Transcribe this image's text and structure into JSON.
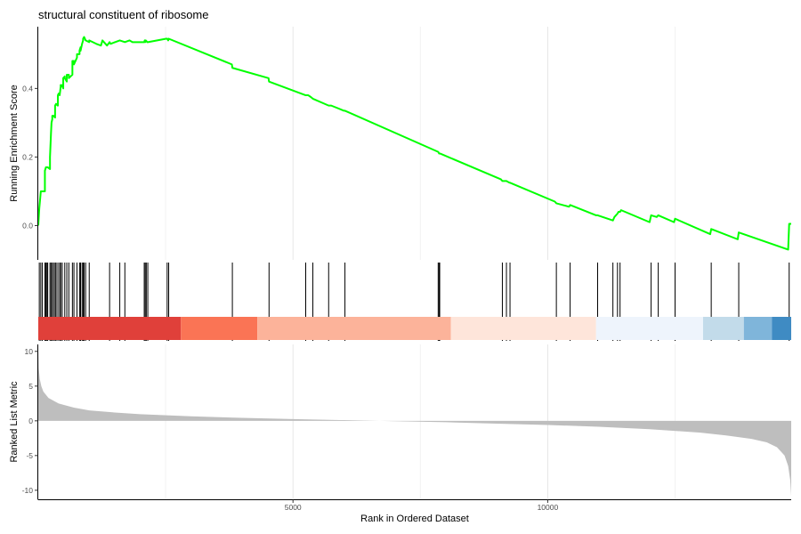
{
  "chart_data": {
    "type": "line",
    "title": "structural constituent of ribosome",
    "xlabel": "Rank in Ordered Dataset",
    "xlim": [
      0,
      14780
    ],
    "x_ticks": [
      5000,
      10000
    ],
    "grid": true,
    "legend": "none",
    "panels": {
      "enrichment": {
        "ylabel": "Running Enrichment Score",
        "ylim": [
          -0.1,
          0.58
        ],
        "y_ticks": [
          0.0,
          0.2,
          0.4
        ],
        "line_color": "#00ff00",
        "series": [
          {
            "x": [
              0,
              20,
              50,
              50,
              130,
              130,
              150,
              150,
              155,
              170,
              170,
              185,
              185,
              230,
              230,
              250,
              250,
              260,
              275,
              275,
              300,
              300,
              330,
              330,
              350,
              350,
              380,
              385,
              385,
              400,
              420,
              420,
              440,
              440,
              470,
              470,
              480,
              490,
              490,
              520,
              520,
              560,
              560,
              600,
              600,
              670,
              670,
              700,
              700,
              760,
              760,
              810,
              810,
              830,
              830,
              860,
              860,
              880,
              880,
              900,
              900,
              930,
              930,
              1000,
              1000,
              1140,
              1230,
              1260,
              1350,
              1400,
              1420,
              1600,
              1700,
              1790,
              1850,
              2080,
              2090,
              2100,
              2110,
              2140,
              2150,
              2510,
              2530,
              2550,
              2560,
              3800,
              3810,
              4520,
              4530,
              5250,
              5300,
              5350,
              5390,
              5700,
              5750,
              6000,
              6020,
              7850,
              7870,
              7880,
              7890,
              9080,
              9110,
              9150,
              9190,
              9250,
              9260,
              10140,
              10170,
              10420,
              10440,
              10950,
              10980,
              11280,
              11310,
              11370,
              11390,
              11420,
              11440,
              12000,
              12030,
              12140,
              12170,
              12480,
              12500,
              13190,
              13210,
              13730,
              13750,
              14720,
              14740,
              14780
            ],
            "values": [
              0.0,
              0.05,
              0.1,
              0.1,
              0.1,
              0.16,
              0.17,
              0.17,
              0.17,
              0.17,
              0.17,
              0.17,
              0.17,
              0.165,
              0.2,
              0.27,
              0.27,
              0.3,
              0.31,
              0.32,
              0.32,
              0.32,
              0.315,
              0.35,
              0.355,
              0.355,
              0.35,
              0.35,
              0.38,
              0.385,
              0.385,
              0.38,
              0.405,
              0.41,
              0.405,
              0.41,
              0.41,
              0.4,
              0.43,
              0.435,
              0.43,
              0.42,
              0.44,
              0.44,
              0.43,
              0.44,
              0.48,
              0.48,
              0.47,
              0.49,
              0.5,
              0.5,
              0.51,
              0.52,
              0.51,
              0.53,
              0.53,
              0.54,
              0.545,
              0.55,
              0.55,
              0.54,
              0.54,
              0.535,
              0.54,
              0.53,
              0.525,
              0.54,
              0.525,
              0.535,
              0.53,
              0.54,
              0.535,
              0.54,
              0.535,
              0.535,
              0.54,
              0.535,
              0.54,
              0.535,
              0.535,
              0.545,
              0.545,
              0.54,
              0.545,
              0.47,
              0.46,
              0.43,
              0.42,
              0.38,
              0.38,
              0.375,
              0.37,
              0.35,
              0.35,
              0.335,
              0.335,
              0.215,
              0.21,
              0.21,
              0.21,
              0.135,
              0.13,
              0.13,
              0.13,
              0.125,
              0.125,
              0.07,
              0.065,
              0.055,
              0.06,
              0.03,
              0.03,
              0.015,
              0.025,
              0.035,
              0.04,
              0.04,
              0.045,
              0.01,
              0.03,
              0.025,
              0.03,
              0.01,
              0.02,
              -0.025,
              -0.01,
              -0.04,
              -0.02,
              -0.07,
              0.005,
              0.005
            ]
          }
        ]
      },
      "gene_hits": {
        "positions": [
          20,
          50,
          80,
          130,
          150,
          170,
          185,
          230,
          250,
          275,
          300,
          330,
          350,
          385,
          420,
          440,
          470,
          520,
          560,
          600,
          670,
          700,
          760,
          810,
          830,
          860,
          880,
          900,
          930,
          1000,
          1400,
          1600,
          1700,
          2080,
          2100,
          2120,
          2150,
          2530,
          2560,
          3810,
          4530,
          5250,
          5390,
          5700,
          6020,
          7850,
          7870,
          7880,
          9110,
          9190,
          9260,
          10170,
          10440,
          10980,
          11280,
          11370,
          11420,
          12030,
          12170,
          12500,
          13210,
          13750,
          14740
        ]
      },
      "color_band": {
        "segments": [
          {
            "from": 0,
            "to": 2800,
            "color": "#e0403a"
          },
          {
            "from": 2800,
            "to": 4300,
            "color": "#fa7455"
          },
          {
            "from": 4300,
            "to": 8100,
            "color": "#fcb39a"
          },
          {
            "from": 8100,
            "to": 10950,
            "color": "#fee5da"
          },
          {
            "from": 10950,
            "to": 13050,
            "color": "#eef4fc"
          },
          {
            "from": 13050,
            "to": 13850,
            "color": "#c2dbea"
          },
          {
            "from": 13850,
            "to": 14400,
            "color": "#7fb5da"
          },
          {
            "from": 14400,
            "to": 14780,
            "color": "#3f8bc3"
          }
        ]
      },
      "ranked_metric": {
        "ylabel": "Ranked List Metric",
        "ylim": [
          -11.3,
          11.0
        ],
        "y_ticks": [
          10,
          5,
          0,
          -5,
          -10
        ],
        "fill_color": "#bebebe",
        "series": [
          {
            "x": [
              0,
              10,
              30,
              60,
              100,
              200,
              400,
              700,
              1000,
              1500,
              2000,
              3000,
              4000,
              5000,
              6000,
              7000,
              8000,
              9000,
              10000,
              11000,
              12000,
              13000,
              13500,
              14000,
              14300,
              14500,
              14650,
              14720,
              14760,
              14780
            ],
            "values": [
              10.5,
              7.5,
              6.0,
              5.0,
              4.2,
              3.3,
              2.5,
              1.9,
              1.5,
              1.2,
              0.95,
              0.65,
              0.42,
              0.25,
              0.1,
              -0.05,
              -0.2,
              -0.4,
              -0.6,
              -0.85,
              -1.2,
              -1.7,
              -2.1,
              -2.6,
              -3.1,
              -3.8,
              -5.0,
              -6.5,
              -8.5,
              -10.8
            ]
          }
        ]
      }
    }
  }
}
